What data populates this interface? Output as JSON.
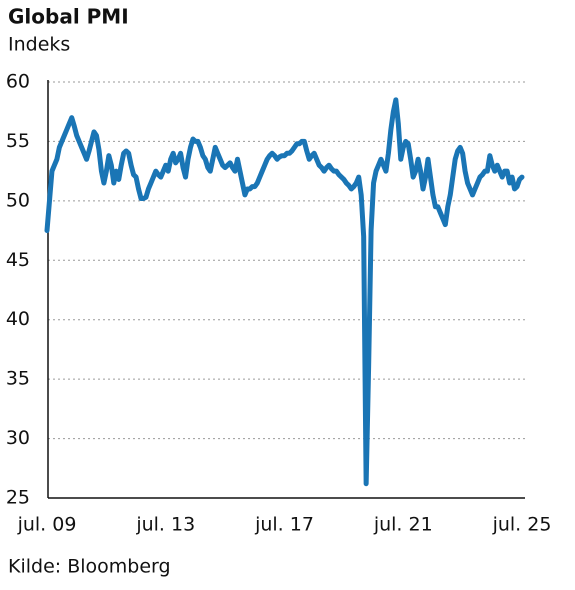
{
  "chart_data": {
    "type": "line",
    "title": "Global PMI",
    "subtitle": "Indeks",
    "source": "Kilde: Bloomberg",
    "categories": [
      "jul. 09",
      null,
      null,
      null,
      null,
      null,
      null,
      null,
      null,
      null,
      null,
      null,
      null,
      null,
      null,
      null,
      null,
      null,
      null,
      null,
      null,
      null,
      null,
      null,
      null,
      null,
      null,
      null,
      null,
      null,
      null,
      null,
      null,
      null,
      null,
      null,
      null,
      null,
      null,
      null,
      null,
      null,
      null,
      null,
      null,
      null,
      null,
      null,
      "jul. 13",
      null,
      null,
      null,
      null,
      null,
      null,
      null,
      null,
      null,
      null,
      null,
      null,
      null,
      null,
      null,
      null,
      null,
      null,
      null,
      null,
      null,
      null,
      null,
      null,
      null,
      null,
      null,
      null,
      null,
      null,
      null,
      null,
      null,
      null,
      null,
      null,
      null,
      null,
      null,
      null,
      null,
      null,
      null,
      null,
      null,
      null,
      null,
      "jul. 17",
      null,
      null,
      null,
      null,
      null,
      null,
      null,
      null,
      null,
      null,
      null,
      null,
      null,
      null,
      null,
      null,
      null,
      null,
      null,
      null,
      null,
      null,
      null,
      null,
      null,
      null,
      null,
      null,
      null,
      null,
      null,
      null,
      null,
      null,
      null,
      null,
      null,
      null,
      null,
      null,
      null,
      null,
      null,
      null,
      null,
      null,
      null,
      "jul. 21",
      null,
      null,
      null,
      null,
      null,
      null,
      null,
      null,
      null,
      null,
      null,
      null,
      null,
      null,
      null,
      null,
      null,
      null,
      null,
      null,
      null,
      null,
      null,
      null,
      null,
      null,
      null,
      null,
      null,
      null,
      null,
      null,
      null,
      null,
      null,
      null,
      null,
      null,
      null,
      null,
      null,
      null,
      null,
      null,
      null,
      null,
      null,
      "jul. 25"
    ],
    "series": [
      {
        "color": "#1a75b5",
        "values": [
          47.5,
          50,
          52.5,
          53,
          53.5,
          54.5,
          55,
          55.5,
          56,
          56.5,
          57,
          56.3,
          55.5,
          55,
          54.5,
          54,
          53.5,
          54.2,
          55,
          55.8,
          55.5,
          54.3,
          52.5,
          51.5,
          52.5,
          53.8,
          53,
          51.5,
          52.5,
          51.8,
          53,
          54,
          54.2,
          54,
          53,
          52.2,
          52,
          51,
          50.2,
          50.2,
          50.3,
          51,
          51.5,
          52,
          52.5,
          52.2,
          52,
          52.5,
          53,
          52.5,
          53.5,
          54,
          53.2,
          53.5,
          54,
          52.8,
          52,
          53.5,
          54.5,
          55.2,
          55,
          55,
          54.5,
          53.8,
          53.5,
          52.8,
          52.5,
          53.5,
          54.5,
          54,
          53.5,
          53,
          52.8,
          53,
          53.2,
          52.8,
          52.5,
          53.5,
          52.5,
          51.5,
          50.5,
          51,
          51,
          51.2,
          51.2,
          51.5,
          52,
          52.5,
          53,
          53.5,
          53.8,
          54,
          53.8,
          53.5,
          53.7,
          53.8,
          53.8,
          54,
          54,
          54.2,
          54.5,
          54.8,
          54.8,
          55,
          55,
          54.2,
          53.5,
          53.8,
          54,
          53.5,
          53,
          52.8,
          52.5,
          52.8,
          53,
          52.7,
          52.5,
          52.5,
          52.2,
          52,
          51.8,
          51.5,
          51.3,
          51,
          51.2,
          51.5,
          52,
          50.5,
          47,
          26.2,
          36,
          47.5,
          51.5,
          52.5,
          53,
          53.5,
          53,
          52.5,
          54,
          56,
          57.5,
          58.5,
          56.5,
          53.5,
          54.5,
          55,
          54.8,
          53.5,
          52,
          52.5,
          53.5,
          52.5,
          51,
          52,
          53.5,
          52,
          50.5,
          49.5,
          49.5,
          49,
          48.5,
          48,
          49.5,
          50.5,
          52,
          53.5,
          54.2,
          54.5,
          54,
          52.5,
          51.5,
          51,
          50.5,
          51,
          51.5,
          52,
          52.2,
          52.5,
          52.5,
          53.8,
          53,
          52.5,
          53,
          52.5,
          52,
          52.5,
          52.5,
          51.5,
          52,
          51,
          51.2,
          51.8,
          52
        ]
      }
    ],
    "ylim": [
      25,
      60
    ],
    "yticks": [
      25,
      30,
      35,
      40,
      45,
      50,
      55,
      60
    ],
    "grid": true
  }
}
